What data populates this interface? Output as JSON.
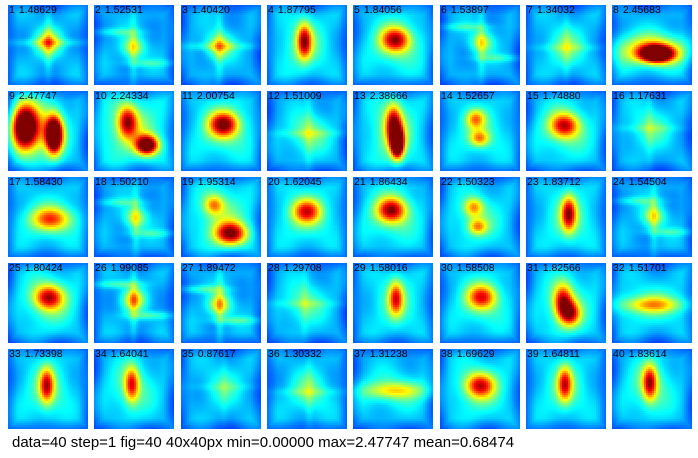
{
  "figure": {
    "tiles": [
      {
        "index": "1",
        "value": "1.48629",
        "icon": "heatmap-cross-center"
      },
      {
        "index": "2",
        "value": "1.52531",
        "icon": "heatmap-cross-spokes"
      },
      {
        "index": "3",
        "value": "1.40420",
        "icon": "heatmap-cross-center"
      },
      {
        "index": "4",
        "value": "1.87795",
        "icon": "heatmap-vertical-blob"
      },
      {
        "index": "5",
        "value": "1.84056",
        "icon": "heatmap-center-blob"
      },
      {
        "index": "6",
        "value": "1.53897",
        "icon": "heatmap-cross-spokes"
      },
      {
        "index": "7",
        "value": "1.34032",
        "icon": "heatmap-faint-center"
      },
      {
        "index": "8",
        "value": "2.45683",
        "icon": "heatmap-horizontal-hot"
      },
      {
        "index": "9",
        "value": "2.47747",
        "icon": "heatmap-double-hot"
      },
      {
        "index": "10",
        "value": "2.24334",
        "icon": "heatmap-diagonal-hot"
      },
      {
        "index": "11",
        "value": "2.00754",
        "icon": "heatmap-center-blob"
      },
      {
        "index": "12",
        "value": "1.51009",
        "icon": "heatmap-faint-center"
      },
      {
        "index": "13",
        "value": "2.38666",
        "icon": "heatmap-vertical-hot"
      },
      {
        "index": "14",
        "value": "1.52657",
        "icon": "heatmap-double-spot"
      },
      {
        "index": "15",
        "value": "1.74880",
        "icon": "heatmap-center-blob"
      },
      {
        "index": "16",
        "value": "1.17631",
        "icon": "heatmap-faint-center"
      },
      {
        "index": "17",
        "value": "1.58430",
        "icon": "heatmap-oval-center"
      },
      {
        "index": "18",
        "value": "1.50210",
        "icon": "heatmap-cross-spokes"
      },
      {
        "index": "19",
        "value": "1.95314",
        "icon": "heatmap-lower-blob"
      },
      {
        "index": "20",
        "value": "1.62045",
        "icon": "heatmap-center-blob"
      },
      {
        "index": "21",
        "value": "1.86434",
        "icon": "heatmap-center-blob"
      },
      {
        "index": "22",
        "value": "1.50323",
        "icon": "heatmap-double-spot"
      },
      {
        "index": "23",
        "value": "1.83712",
        "icon": "heatmap-vertical-blob"
      },
      {
        "index": "24",
        "value": "1.54504",
        "icon": "heatmap-cross-spokes"
      },
      {
        "index": "25",
        "value": "1.80424",
        "icon": "heatmap-center-blob"
      },
      {
        "index": "26",
        "value": "1.99085",
        "icon": "heatmap-cross-spokes"
      },
      {
        "index": "27",
        "value": "1.89472",
        "icon": "heatmap-cross-spokes"
      },
      {
        "index": "28",
        "value": "1.29708",
        "icon": "heatmap-faint-center"
      },
      {
        "index": "29",
        "value": "1.58016",
        "icon": "heatmap-vertical-blob"
      },
      {
        "index": "30",
        "value": "1.58508",
        "icon": "heatmap-center-blob"
      },
      {
        "index": "31",
        "value": "1.82566",
        "icon": "heatmap-diagonal-blob"
      },
      {
        "index": "32",
        "value": "1.51701",
        "icon": "heatmap-horizontal-band"
      },
      {
        "index": "33",
        "value": "1.73398",
        "icon": "heatmap-vertical-blob"
      },
      {
        "index": "34",
        "value": "1.64041",
        "icon": "heatmap-vertical-blob"
      },
      {
        "index": "35",
        "value": "0.87617",
        "icon": "heatmap-faint-center"
      },
      {
        "index": "36",
        "value": "1.30332",
        "icon": "heatmap-faint-center"
      },
      {
        "index": "37",
        "value": "1.31238",
        "icon": "heatmap-horizontal-band"
      },
      {
        "index": "38",
        "value": "1.69629",
        "icon": "heatmap-center-blob"
      },
      {
        "index": "39",
        "value": "1.64811",
        "icon": "heatmap-vertical-blob"
      },
      {
        "index": "40",
        "value": "1.83614",
        "icon": "heatmap-vertical-blob"
      }
    ],
    "colormap": {
      "low": "#0000ff",
      "mid_low": "#0096ff",
      "mid": "#00ffa0",
      "mid_high": "#c8ff00",
      "high": "#ff0000"
    },
    "stats_line": "data=40 step=1 fig=40 40x40px min=0.00000 max=2.47747 mean=0.68474"
  }
}
